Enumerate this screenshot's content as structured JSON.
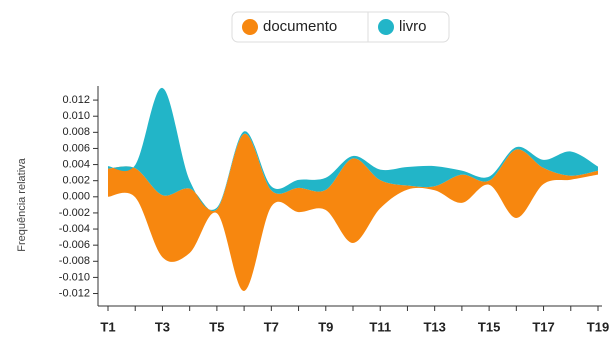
{
  "chart_data": {
    "type": "streamgraph",
    "y_label": "Frequência relativa",
    "categories": [
      "T1",
      null,
      "T3",
      null,
      "T5",
      null,
      "T7",
      null,
      "T9",
      null,
      "T11",
      null,
      "T13",
      null,
      "T15",
      null,
      "T17",
      null,
      "T19"
    ],
    "series": [
      {
        "name": "documento",
        "color": "#f7870f",
        "values": [
          0.0035,
          0.0036,
          0.0077,
          0.008,
          0.0005,
          0.0195,
          0.002,
          0.003,
          0.0025,
          0.0105,
          0.0035,
          0.0005,
          0.0005,
          0.0035,
          0.0005,
          0.0085,
          0.002,
          0.0005,
          0.0005
        ]
      },
      {
        "name": "livro",
        "color": "#22b5c8",
        "values": [
          0.0003,
          0.0004,
          0.0133,
          0.001,
          0.0002,
          0.0003,
          0.0005,
          0.001,
          0.0015,
          0.0003,
          0.0013,
          0.0023,
          0.0025,
          0.0005,
          0.0005,
          0.0003,
          0.001,
          0.003,
          0.0005
        ]
      }
    ],
    "ylim": [
      -0.0133,
      0.0135
    ],
    "yticks": [
      {
        "value": -0.012,
        "label": "-0.012"
      },
      {
        "value": -0.01,
        "label": "-0.010"
      },
      {
        "value": -0.008,
        "label": "-0.008"
      },
      {
        "value": -0.006,
        "label": "-0.006"
      },
      {
        "value": -0.004,
        "label": "-0.004"
      },
      {
        "value": -0.002,
        "label": "-0.002"
      },
      {
        "value": 0,
        "label": "0.000"
      },
      {
        "value": 0.002,
        "label": "0.002"
      },
      {
        "value": 0.004,
        "label": "0.004"
      },
      {
        "value": 0.006,
        "label": "0.006"
      },
      {
        "value": 0.008,
        "label": "0.008"
      },
      {
        "value": 0.01,
        "label": "0.010"
      },
      {
        "value": 0.012,
        "label": "0.012"
      }
    ],
    "legend": "top"
  }
}
